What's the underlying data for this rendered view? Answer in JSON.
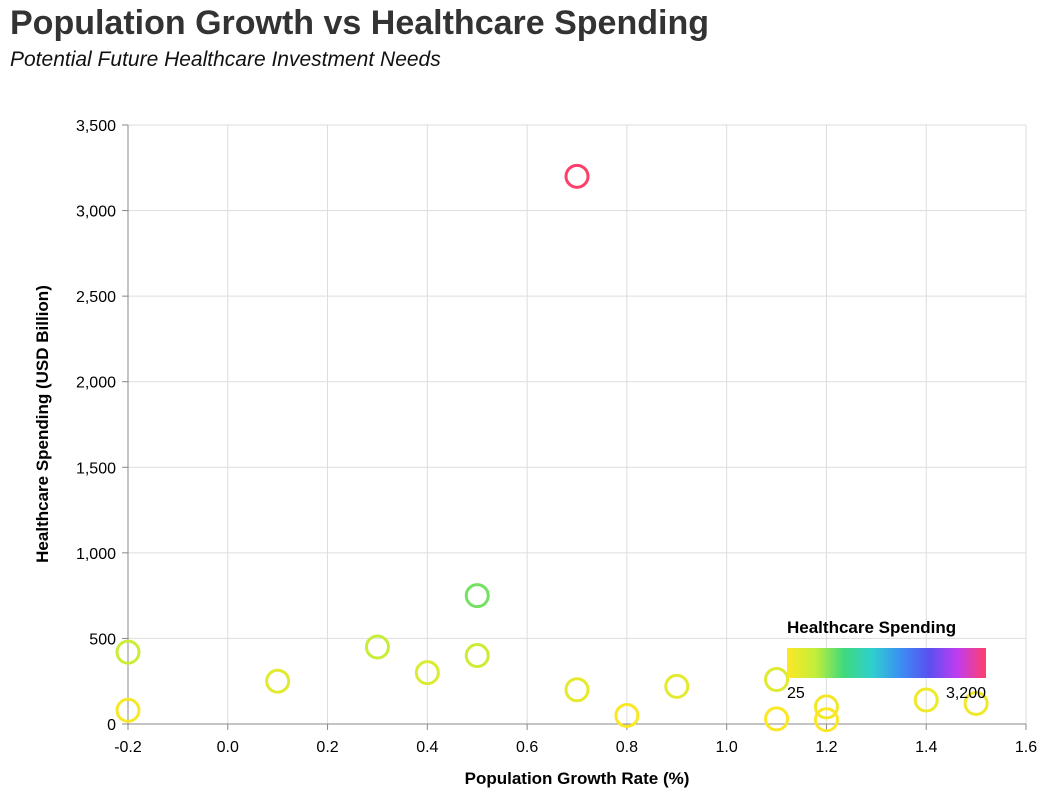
{
  "chart_data": {
    "type": "scatter",
    "title": "Population Growth vs Healthcare Spending",
    "subtitle": "Potential Future Healthcare Investment Needs",
    "xlabel": "Population Growth Rate (%)",
    "ylabel": "Healthcare Spending (USD Billion)",
    "xlim": [
      -0.2,
      1.6
    ],
    "ylim": [
      0,
      3500
    ],
    "x_ticks": [
      "-0.2",
      "0.0",
      "0.2",
      "0.4",
      "0.6",
      "0.8",
      "1.0",
      "1.2",
      "1.4",
      "1.6"
    ],
    "y_ticks": [
      "0",
      "500",
      "1,000",
      "1,500",
      "2,000",
      "2,500",
      "3,000",
      "3,500"
    ],
    "grid": true,
    "points": [
      {
        "x": 0.7,
        "y": 3200
      },
      {
        "x": 0.5,
        "y": 750
      },
      {
        "x": 0.3,
        "y": 450
      },
      {
        "x": -0.2,
        "y": 420
      },
      {
        "x": 0.5,
        "y": 400
      },
      {
        "x": 0.4,
        "y": 300
      },
      {
        "x": 1.1,
        "y": 260
      },
      {
        "x": 0.1,
        "y": 250
      },
      {
        "x": 0.9,
        "y": 220
      },
      {
        "x": 0.7,
        "y": 200
      },
      {
        "x": 1.4,
        "y": 140
      },
      {
        "x": 1.5,
        "y": 120
      },
      {
        "x": 1.2,
        "y": 100
      },
      {
        "x": -0.2,
        "y": 80
      },
      {
        "x": 0.8,
        "y": 50
      },
      {
        "x": 1.1,
        "y": 30
      },
      {
        "x": 1.2,
        "y": 25
      }
    ],
    "color_scale": {
      "field": "Healthcare Spending",
      "min": 25,
      "max": 3200,
      "min_label": "25",
      "max_label": "3,200",
      "stops": [
        "#fde725",
        "#c2ee3a",
        "#3fd97d",
        "#2fcfcf",
        "#3b8ef2",
        "#5a50f0",
        "#c03cf0",
        "#ff3f6a"
      ]
    },
    "legend": {
      "title": "Healthcare Spending",
      "position": "bottom-right"
    }
  }
}
